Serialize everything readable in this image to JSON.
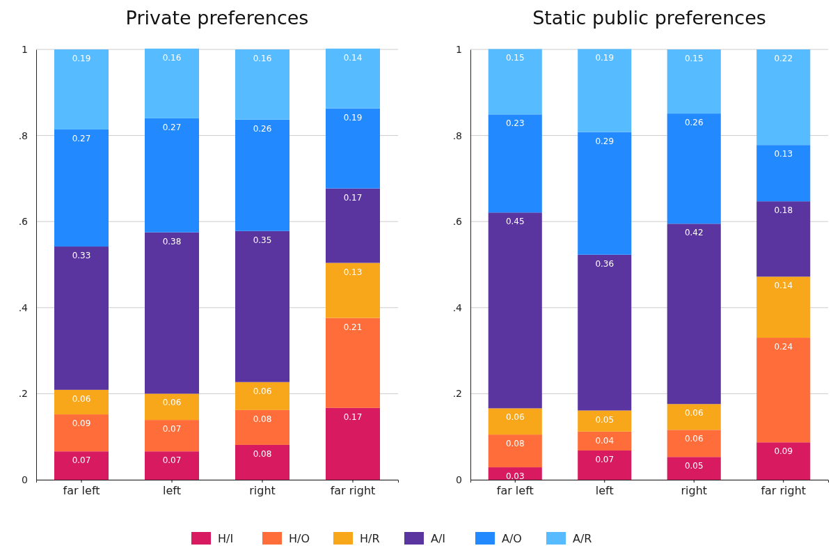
{
  "chart_data": [
    {
      "type": "bar",
      "title": "Private preferences",
      "stacked": true,
      "categories": [
        "far left",
        "left",
        "right",
        "far right"
      ],
      "ylim": [
        0,
        1
      ],
      "yticks": [
        {
          "value": 0,
          "label": "0"
        },
        {
          "value": 0.2,
          "label": ".2"
        },
        {
          "value": 0.4,
          "label": ".4"
        },
        {
          "value": 0.6,
          "label": ".6"
        },
        {
          "value": 0.8,
          "label": ".8"
        },
        {
          "value": 1,
          "label": "1"
        }
      ],
      "grid": "y",
      "legend": "bottom",
      "series": [
        {
          "name": "H/I",
          "color": "#d81b60",
          "values": [
            0.066,
            0.066,
            0.081,
            0.167
          ],
          "value_labels": [
            "0.07",
            "0.07",
            "0.08",
            "0.17"
          ]
        },
        {
          "name": "H/O",
          "color": "#ff6e3a",
          "values": [
            0.086,
            0.073,
            0.081,
            0.209
          ],
          "value_labels": [
            "0.09",
            "0.07",
            "0.08",
            "0.21"
          ]
        },
        {
          "name": "H/R",
          "color": "#f8a61a",
          "values": [
            0.057,
            0.061,
            0.065,
            0.128
          ],
          "value_labels": [
            "0.06",
            "0.06",
            "0.06",
            "0.13"
          ]
        },
        {
          "name": "A/I",
          "color": "#5a35a0",
          "values": [
            0.333,
            0.375,
            0.351,
            0.173
          ],
          "value_labels": [
            "0.33",
            "0.38",
            "0.35",
            "0.17"
          ]
        },
        {
          "name": "A/O",
          "color": "#2389ff",
          "values": [
            0.272,
            0.265,
            0.259,
            0.186
          ],
          "value_labels": [
            "0.27",
            "0.27",
            "0.26",
            "0.19"
          ]
        },
        {
          "name": "A/R",
          "color": "#56bbff",
          "values": [
            0.186,
            0.162,
            0.163,
            0.139
          ],
          "value_labels": [
            "0.19",
            "0.16",
            "0.16",
            "0.14"
          ]
        }
      ]
    },
    {
      "type": "bar",
      "title": "Static public preferences",
      "stacked": true,
      "categories": [
        "far left",
        "left",
        "right",
        "far right"
      ],
      "ylim": [
        0,
        1
      ],
      "yticks": [
        {
          "value": 0,
          "label": "0"
        },
        {
          "value": 0.2,
          "label": ".2"
        },
        {
          "value": 0.4,
          "label": ".4"
        },
        {
          "value": 0.6,
          "label": ".6"
        },
        {
          "value": 0.8,
          "label": ".8"
        },
        {
          "value": 1,
          "label": "1"
        }
      ],
      "grid": "y",
      "series": [
        {
          "color": "#d81b60",
          "values": [
            0.029,
            0.068,
            0.053,
            0.087
          ],
          "value_labels": [
            "0.03",
            "0.07",
            "0.05",
            "0.09"
          ]
        },
        {
          "color": "#ff6e3a",
          "values": [
            0.076,
            0.044,
            0.063,
            0.243
          ],
          "value_labels": [
            "0.08",
            "0.04",
            "0.06",
            "0.24"
          ]
        },
        {
          "color": "#f8a61a",
          "values": [
            0.061,
            0.049,
            0.06,
            0.142
          ],
          "value_labels": [
            "0.06",
            "0.05",
            "0.06",
            "0.14"
          ]
        },
        {
          "color": "#5a35a0",
          "values": [
            0.455,
            0.362,
            0.419,
            0.175
          ],
          "value_labels": [
            "0.45",
            "0.36",
            "0.42",
            "0.18"
          ]
        },
        {
          "color": "#2389ff",
          "values": [
            0.228,
            0.285,
            0.256,
            0.131
          ],
          "value_labels": [
            "0.23",
            "0.29",
            "0.26",
            "0.13"
          ]
        },
        {
          "color": "#56bbff",
          "values": [
            0.152,
            0.193,
            0.149,
            0.222
          ],
          "value_labels": [
            "0.15",
            "0.19",
            "0.15",
            "0.22"
          ]
        }
      ]
    }
  ]
}
